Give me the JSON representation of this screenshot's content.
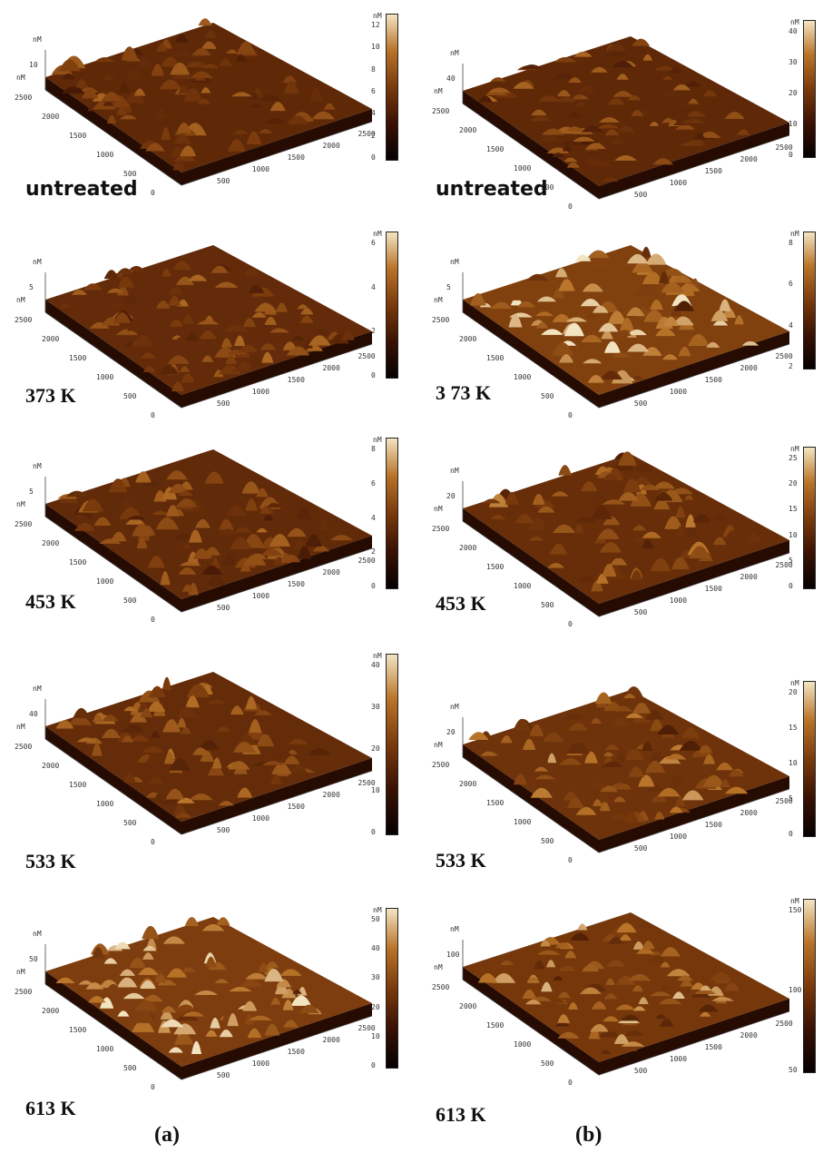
{
  "panels": {
    "a": {
      "letter": "(a)",
      "items": [
        {
          "label": "untreated",
          "unit": "nM",
          "zmax": "10",
          "cbar_ticks": [
            "12",
            "10",
            "8",
            "6",
            "4",
            "2",
            "0"
          ],
          "y_ticks": [
            "2500",
            "2000",
            "1500",
            "1000",
            "500",
            "0"
          ],
          "x_ticks": [
            "500",
            "1000",
            "1500",
            "2000",
            "2500"
          ]
        },
        {
          "label": "373 K",
          "unit": "nM",
          "zmax": "5",
          "cbar_ticks": [
            "6",
            "4",
            "2",
            "0"
          ],
          "y_ticks": [
            "2500",
            "2000",
            "1500",
            "1000",
            "500",
            "0"
          ],
          "x_ticks": [
            "500",
            "1000",
            "1500",
            "2000",
            "2500"
          ]
        },
        {
          "label": "453 K",
          "unit": "nM",
          "zmax": "5",
          "cbar_ticks": [
            "8",
            "6",
            "4",
            "2",
            "0"
          ],
          "y_ticks": [
            "2500",
            "2000",
            "1500",
            "1000",
            "500",
            "0"
          ],
          "x_ticks": [
            "500",
            "1000",
            "1500",
            "2000",
            "2500"
          ]
        },
        {
          "label": "533 K",
          "unit": "nM",
          "zmax": "40",
          "cbar_ticks": [
            "40",
            "30",
            "20",
            "10",
            "0"
          ],
          "y_ticks": [
            "2500",
            "2000",
            "1500",
            "1000",
            "500",
            "0"
          ],
          "x_ticks": [
            "500",
            "1000",
            "1500",
            "2000",
            "2500"
          ]
        },
        {
          "label": "613 K",
          "unit": "nM",
          "zmax": "50",
          "cbar_ticks": [
            "50",
            "40",
            "30",
            "20",
            "10",
            "0"
          ],
          "y_ticks": [
            "2500",
            "2000",
            "1500",
            "1000",
            "500",
            "0"
          ],
          "x_ticks": [
            "500",
            "1000",
            "1500",
            "2000",
            "2500"
          ]
        }
      ]
    },
    "b": {
      "letter": "(b)",
      "items": [
        {
          "label": "untreated",
          "unit": "nM",
          "zmax": "40",
          "cbar_ticks": [
            "40",
            "30",
            "20",
            "10",
            "0"
          ],
          "y_ticks": [
            "2500",
            "2000",
            "1500",
            "1000",
            "500",
            "0"
          ],
          "x_ticks": [
            "500",
            "1000",
            "1500",
            "2000",
            "2500"
          ]
        },
        {
          "label": "3 73 K",
          "unit": "nM",
          "zmax": "5",
          "cbar_ticks": [
            "8",
            "6",
            "4",
            "2"
          ],
          "y_ticks": [
            "2500",
            "2000",
            "1500",
            "1000",
            "500",
            "0"
          ],
          "x_ticks": [
            "500",
            "1000",
            "1500",
            "2000",
            "2500"
          ]
        },
        {
          "label": "453 K",
          "unit": "nM",
          "zmax": "20",
          "cbar_ticks": [
            "25",
            "20",
            "15",
            "10",
            "5",
            "0"
          ],
          "y_ticks": [
            "2500",
            "2000",
            "1500",
            "1000",
            "500",
            "0"
          ],
          "x_ticks": [
            "500",
            "1000",
            "1500",
            "2000",
            "2500"
          ]
        },
        {
          "label": "533 K",
          "unit": "nM",
          "zmax": "20",
          "cbar_ticks": [
            "20",
            "15",
            "10",
            "5",
            "0"
          ],
          "y_ticks": [
            "2500",
            "2000",
            "1500",
            "1000",
            "500",
            "0"
          ],
          "x_ticks": [
            "500",
            "1000",
            "1500",
            "2000",
            "2500"
          ]
        },
        {
          "label": "613 K",
          "unit": "nM",
          "zmax": "100",
          "cbar_ticks": [
            "150",
            "100",
            "50"
          ],
          "y_ticks": [
            "2500",
            "2000",
            "1500",
            "1000",
            "500",
            "0"
          ],
          "x_ticks": [
            "500",
            "1000",
            "1500",
            "2000",
            "2500"
          ]
        }
      ]
    }
  }
}
